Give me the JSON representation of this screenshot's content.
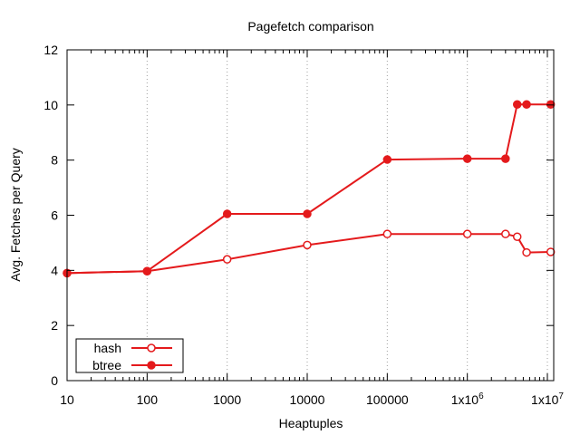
{
  "chart_data": {
    "type": "line",
    "title": "Pagefetch comparison",
    "xlabel": "Heaptuples",
    "ylabel": "Avg. Fetches per Query",
    "x_scale": "log",
    "xlim": [
      10,
      12000000
    ],
    "ylim": [
      0,
      12
    ],
    "grid": "x-only",
    "legend_placement": "bottom-left",
    "x_ticks": [
      {
        "value": 10,
        "label": "10"
      },
      {
        "value": 100,
        "label": "100"
      },
      {
        "value": 1000,
        "label": "1000"
      },
      {
        "value": 10000,
        "label": "10000"
      },
      {
        "value": 100000,
        "label": "100000"
      },
      {
        "value": 1000000,
        "label": "1x10",
        "exponent": "6"
      },
      {
        "value": 10000000,
        "label": "1x10",
        "exponent": "7"
      }
    ],
    "y_ticks": [
      {
        "value": 0,
        "label": "0"
      },
      {
        "value": 2,
        "label": "2"
      },
      {
        "value": 4,
        "label": "4"
      },
      {
        "value": 6,
        "label": "6"
      },
      {
        "value": 8,
        "label": "8"
      },
      {
        "value": 10,
        "label": "10"
      },
      {
        "value": 12,
        "label": "12"
      }
    ],
    "series": [
      {
        "name": "hash",
        "color": "#e41a1c",
        "marker": "open-circle",
        "x": [
          10,
          100,
          1000,
          10000,
          100000,
          1000000,
          3000000,
          4200000,
          5500000,
          11000000
        ],
        "y": [
          3.9,
          3.97,
          4.4,
          4.92,
          5.32,
          5.32,
          5.32,
          5.22,
          4.65,
          4.67
        ]
      },
      {
        "name": "btree",
        "color": "#e41a1c",
        "marker": "filled-circle",
        "x": [
          10,
          100,
          1000,
          10000,
          100000,
          1000000,
          3000000,
          4200000,
          5500000,
          11000000
        ],
        "y": [
          3.9,
          3.97,
          6.05,
          6.05,
          8.02,
          8.05,
          8.05,
          10.02,
          10.02,
          10.02
        ]
      }
    ]
  }
}
